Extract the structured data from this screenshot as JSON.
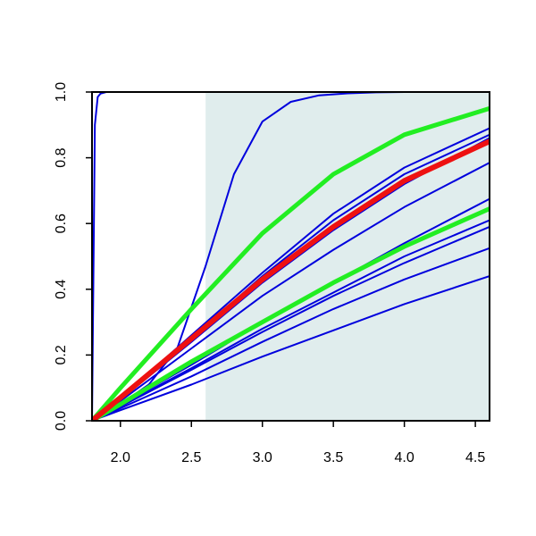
{
  "chart_data": {
    "type": "line",
    "title": "",
    "xlabel": "",
    "ylabel": "",
    "xlim": [
      1.8,
      4.6
    ],
    "ylim": [
      0.0,
      1.0
    ],
    "x_ticks": [
      "2.0",
      "2.5",
      "3.0",
      "3.5",
      "4.0",
      "4.5"
    ],
    "x_tick_values": [
      2.0,
      2.5,
      3.0,
      3.5,
      4.0,
      4.5
    ],
    "y_ticks": [
      "0.0",
      "0.2",
      "0.4",
      "0.6",
      "0.8",
      "1.0"
    ],
    "y_tick_values": [
      0.0,
      0.2,
      0.4,
      0.6,
      0.8,
      1.0
    ],
    "grid": false,
    "legend": "none",
    "shaded_region": {
      "x": [
        2.6,
        4.6
      ],
      "y": [
        0.0,
        1.0
      ],
      "color": "#e0eded"
    },
    "series": [
      {
        "color": "#0000dd",
        "width": 2,
        "x": [
          1.8,
          1.82,
          1.84,
          1.86,
          1.9,
          2.0,
          4.6
        ],
        "y": [
          0.0,
          0.9,
          0.985,
          0.995,
          1.0,
          1.0,
          1.0
        ]
      },
      {
        "color": "#0000dd",
        "width": 2,
        "x": [
          1.8,
          2.0,
          2.2,
          2.4,
          2.6,
          2.8,
          3.0,
          3.2,
          3.4,
          3.6,
          3.8,
          4.0,
          4.6
        ],
        "y": [
          0.0,
          0.05,
          0.11,
          0.22,
          0.47,
          0.75,
          0.91,
          0.97,
          0.99,
          0.996,
          0.999,
          1.0,
          1.0
        ]
      },
      {
        "color": "#0000dd",
        "width": 2,
        "x": [
          1.8,
          2.0,
          2.5,
          3.0,
          3.5,
          4.0,
          4.6
        ],
        "y": [
          0.0,
          0.07,
          0.26,
          0.45,
          0.63,
          0.77,
          0.89
        ]
      },
      {
        "color": "#0000dd",
        "width": 2,
        "x": [
          1.8,
          2.0,
          2.5,
          3.0,
          3.5,
          4.0,
          4.6
        ],
        "y": [
          0.0,
          0.068,
          0.25,
          0.44,
          0.61,
          0.75,
          0.87
        ]
      },
      {
        "color": "#0000dd",
        "width": 2,
        "x": [
          1.8,
          2.0,
          2.5,
          3.0,
          3.5,
          4.0,
          4.6
        ],
        "y": [
          0.0,
          0.065,
          0.24,
          0.42,
          0.58,
          0.72,
          0.86
        ]
      },
      {
        "color": "#0000dd",
        "width": 2,
        "x": [
          1.8,
          2.0,
          2.5,
          3.0,
          3.5,
          4.0,
          4.6
        ],
        "y": [
          0.0,
          0.06,
          0.22,
          0.38,
          0.52,
          0.65,
          0.785
        ]
      },
      {
        "color": "#0000dd",
        "width": 2,
        "x": [
          1.8,
          2.0,
          2.5,
          3.0,
          3.5,
          4.0,
          4.6
        ],
        "y": [
          0.0,
          0.048,
          0.17,
          0.3,
          0.42,
          0.54,
          0.675
        ]
      },
      {
        "color": "#0000dd",
        "width": 2,
        "x": [
          1.8,
          2.0,
          2.5,
          3.0,
          3.5,
          4.0,
          4.6
        ],
        "y": [
          0.0,
          0.045,
          0.16,
          0.28,
          0.39,
          0.5,
          0.61
        ]
      },
      {
        "color": "#0000dd",
        "width": 2,
        "x": [
          1.8,
          2.0,
          2.5,
          3.0,
          3.5,
          4.0,
          4.6
        ],
        "y": [
          0.0,
          0.043,
          0.155,
          0.27,
          0.38,
          0.48,
          0.59
        ]
      },
      {
        "color": "#0000dd",
        "width": 2,
        "x": [
          1.8,
          2.0,
          2.5,
          3.0,
          3.5,
          4.0,
          4.6
        ],
        "y": [
          0.0,
          0.038,
          0.135,
          0.24,
          0.34,
          0.43,
          0.525
        ]
      },
      {
        "color": "#0000dd",
        "width": 2,
        "x": [
          1.8,
          2.0,
          2.5,
          3.0,
          3.5,
          4.0,
          4.6
        ],
        "y": [
          0.0,
          0.032,
          0.11,
          0.195,
          0.275,
          0.355,
          0.44
        ]
      },
      {
        "color": "#22ee22",
        "width": 5,
        "x": [
          1.8,
          2.0,
          2.5,
          3.0,
          3.5,
          4.0,
          4.6
        ],
        "y": [
          0.0,
          0.1,
          0.34,
          0.57,
          0.75,
          0.87,
          0.95
        ]
      },
      {
        "color": "#22ee22",
        "width": 5,
        "x": [
          1.8,
          2.0,
          2.5,
          3.0,
          3.5,
          4.0,
          4.6
        ],
        "y": [
          0.0,
          0.05,
          0.18,
          0.3,
          0.42,
          0.53,
          0.645
        ]
      },
      {
        "color": "#ee1111",
        "width": 6,
        "x": [
          1.8,
          2.0,
          2.5,
          3.0,
          3.5,
          4.0,
          4.6
        ],
        "y": [
          0.0,
          0.07,
          0.25,
          0.43,
          0.59,
          0.73,
          0.85
        ]
      }
    ]
  }
}
